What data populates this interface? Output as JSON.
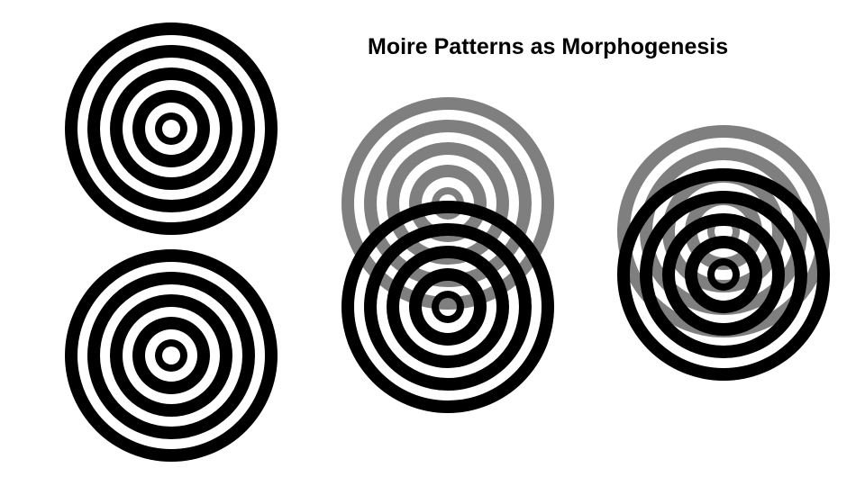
{
  "title": "Moire Patterns as Morphogenesis",
  "colors": {
    "ink": "#000000",
    "paper": "#ffffff",
    "background": "#ffffff"
  },
  "pattern": {
    "name": "concentric-ring-target",
    "ring_count": 5
  }
}
